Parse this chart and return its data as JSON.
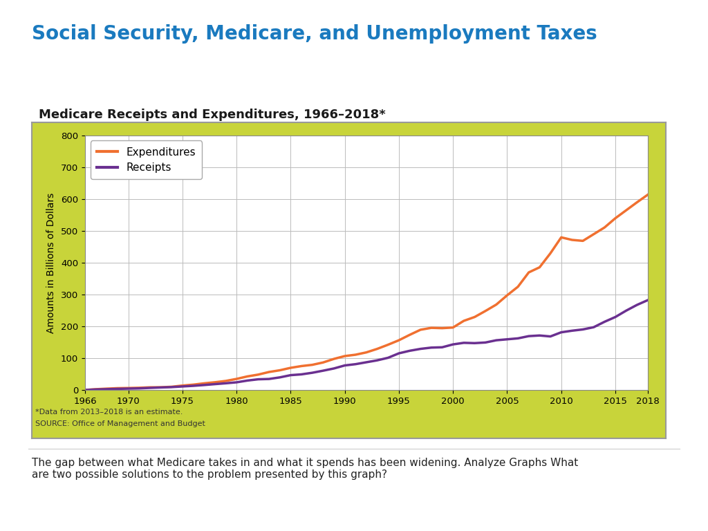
{
  "title": "Social Security, Medicare, and Unemployment Taxes",
  "chart_title": "Medicare Receipts and Expenditures, 1966–2018*",
  "ylabel": "Amounts in Billions of Dollars",
  "footnote1": "*Data from 2013–2018 is an estimate.",
  "footnote2": "SOURCE: Office of Management and Budget",
  "body_text": "The gap between what Medicare takes in and what it spends has been widening. Analyze Graphs What\nare two possible solutions to the problem presented by this graph?",
  "title_color": "#1a7abf",
  "chart_title_color": "#1a1a1a",
  "background_color": "#ffffff",
  "chart_bg_color": "#c8d43a",
  "plot_bg_color": "#ffffff",
  "expenditures_color": "#f07030",
  "receipts_color": "#6a3090",
  "years": [
    1966,
    1967,
    1968,
    1969,
    1970,
    1971,
    1972,
    1973,
    1974,
    1975,
    1976,
    1977,
    1978,
    1979,
    1980,
    1981,
    1982,
    1983,
    1984,
    1985,
    1986,
    1987,
    1988,
    1989,
    1990,
    1991,
    1992,
    1993,
    1994,
    1995,
    1996,
    1997,
    1998,
    1999,
    2000,
    2001,
    2002,
    2003,
    2004,
    2005,
    2006,
    2007,
    2008,
    2009,
    2010,
    2011,
    2012,
    2013,
    2014,
    2015,
    2016,
    2017,
    2018
  ],
  "expenditures": [
    1.0,
    3.4,
    5.1,
    6.6,
    7.1,
    7.9,
    9.3,
    9.5,
    11.0,
    14.8,
    17.7,
    21.8,
    25.2,
    29.3,
    35.7,
    43.5,
    49.2,
    57.4,
    62.8,
    70.5,
    76.0,
    79.9,
    87.3,
    98.5,
    107.4,
    111.7,
    119.0,
    130.0,
    143.0,
    157.0,
    174.0,
    190.0,
    196.0,
    195.0,
    197.0,
    218.0,
    230.0,
    249.0,
    269.0,
    298.0,
    325.0,
    370.0,
    386.0,
    430.0,
    480.0,
    472.0,
    469.0,
    490.0,
    511.0,
    540.0,
    565.0,
    590.0,
    614.0
  ],
  "receipts": [
    1.0,
    2.5,
    3.5,
    4.5,
    5.3,
    6.0,
    7.5,
    8.8,
    10.0,
    12.0,
    14.0,
    16.5,
    19.3,
    22.0,
    25.0,
    30.5,
    34.5,
    35.5,
    40.5,
    47.5,
    50.0,
    55.0,
    61.5,
    68.5,
    78.0,
    82.0,
    88.0,
    94.0,
    102.0,
    116.0,
    124.0,
    130.0,
    134.0,
    135.0,
    144.0,
    149.0,
    148.0,
    150.0,
    157.0,
    160.0,
    163.0,
    170.0,
    172.0,
    169.0,
    182.0,
    187.0,
    191.0,
    198.0,
    215.0,
    230.0,
    250.0,
    268.0,
    283.0
  ],
  "ylim": [
    0,
    800
  ],
  "yticks": [
    0,
    100,
    200,
    300,
    400,
    500,
    600,
    700,
    800
  ],
  "xtick_labels": [
    "1966",
    "1970",
    "1975",
    "1980",
    "1985",
    "1990",
    "1995",
    "2000",
    "2005",
    "2010",
    "2015",
    "2018"
  ],
  "xtick_positions": [
    1966,
    1970,
    1975,
    1980,
    1985,
    1990,
    1995,
    2000,
    2005,
    2010,
    2015,
    2018
  ]
}
